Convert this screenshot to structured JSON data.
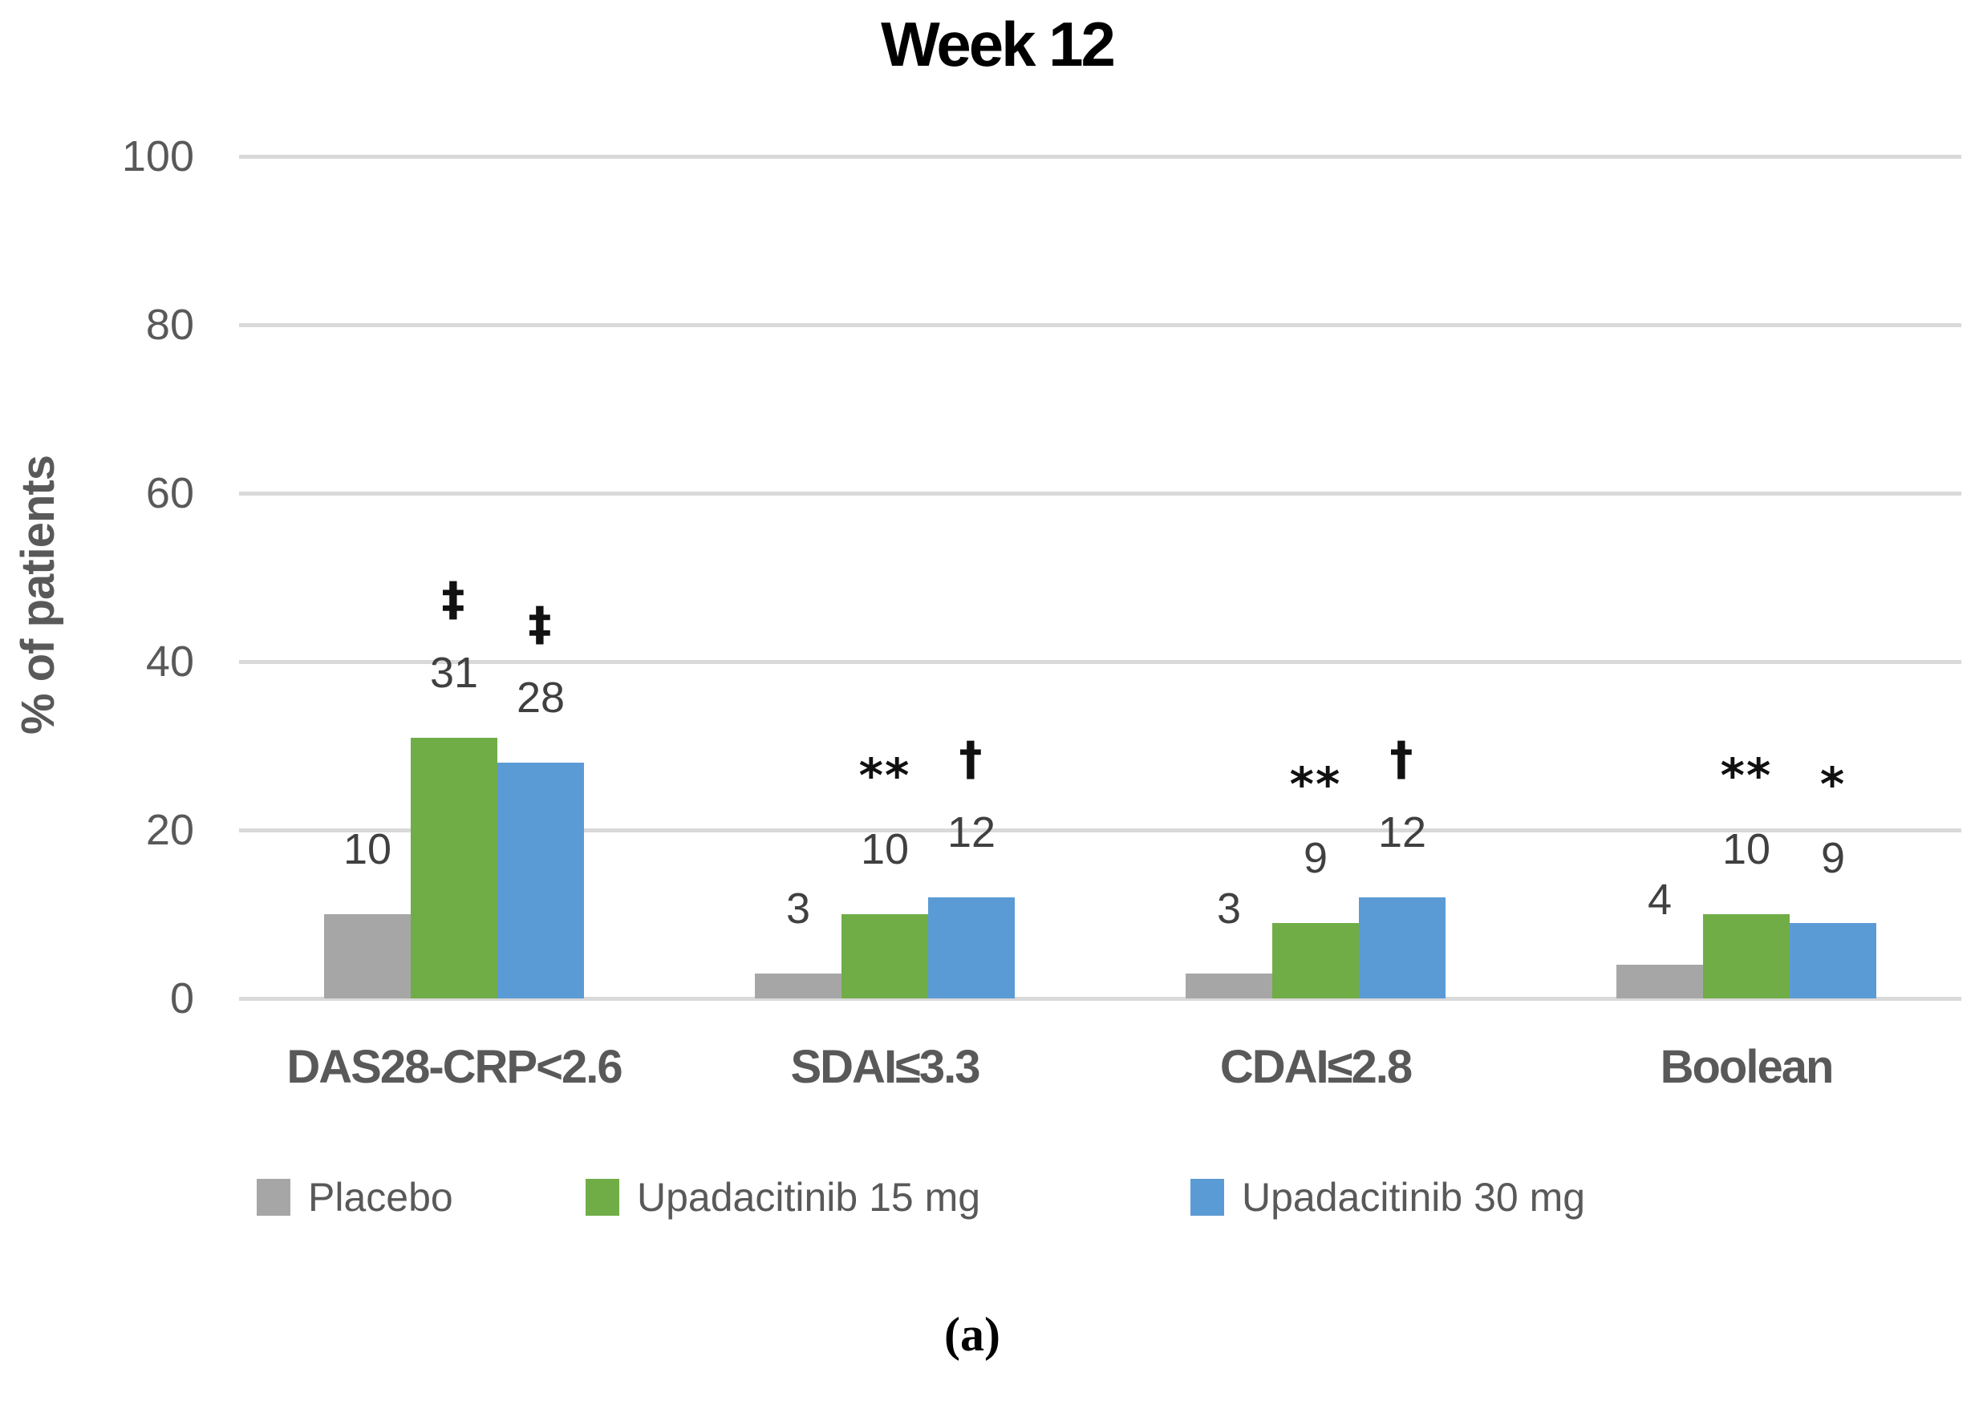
{
  "title": "Week 12",
  "caption": "(a)",
  "y_axis": {
    "label": "% of patients",
    "ticks": [
      0,
      20,
      40,
      60,
      80,
      100
    ]
  },
  "colors": {
    "placebo_gray": "#a6a6a6",
    "upa15_green": "#70ad47",
    "upa30_blue": "#5b9bd5",
    "gridline": "#d9d9d9"
  },
  "chart_data": {
    "type": "bar",
    "title": "Week 12",
    "xlabel": "",
    "ylabel": "% of patients",
    "ylim": [
      0,
      100
    ],
    "grid": true,
    "legend_position": "bottom",
    "categories": [
      "DAS28-CRP<2.6",
      "SDAI≤3.3",
      "CDAI≤2.8",
      "Boolean"
    ],
    "series": [
      {
        "name": "Placebo",
        "color": "#a6a6a6",
        "values": [
          10,
          3,
          3,
          4
        ],
        "annotations": [
          "",
          "",
          "",
          ""
        ]
      },
      {
        "name": "Upadacitinib 15 mg",
        "color": "#70ad47",
        "values": [
          31,
          10,
          9,
          10
        ],
        "annotations": [
          "‡",
          "**",
          "**",
          "**"
        ]
      },
      {
        "name": "Upadacitinib 30 mg",
        "color": "#5b9bd5",
        "values": [
          28,
          12,
          12,
          9
        ],
        "annotations": [
          "‡",
          "†",
          "†",
          "*"
        ]
      }
    ]
  },
  "legend": {
    "items": [
      {
        "label": "Placebo",
        "color": "#a6a6a6"
      },
      {
        "label": "Upadacitinib 15 mg",
        "color": "#70ad47"
      },
      {
        "label": "Upadacitinib 30 mg",
        "color": "#5b9bd5"
      }
    ]
  }
}
